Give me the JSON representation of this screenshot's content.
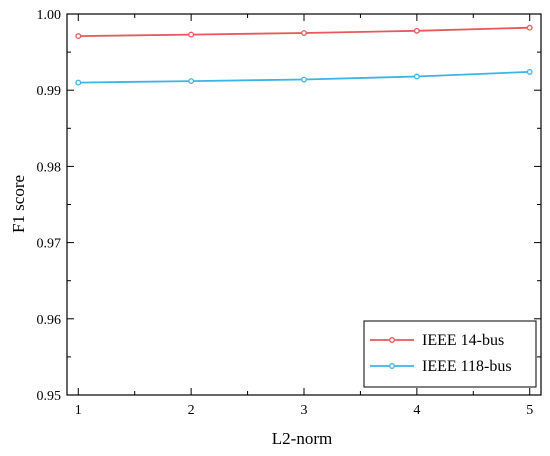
{
  "chart_data": {
    "type": "line",
    "title": "",
    "xlabel": "L2-norm",
    "ylabel": "F1 score",
    "x": [
      1,
      2,
      3,
      4,
      5
    ],
    "xticks": [
      "1",
      "2",
      "3",
      "4",
      "5"
    ],
    "yticks": [
      "0.95",
      "0.96",
      "0.97",
      "0.98",
      "0.99",
      "1.00"
    ],
    "xlim": [
      0.9,
      5.1
    ],
    "ylim": [
      0.95,
      1.0
    ],
    "grid": false,
    "legend_position": "bottom-right",
    "series": [
      {
        "name": "IEEE 14-bus",
        "color": "#e8585c",
        "values": [
          0.9971,
          0.9973,
          0.9975,
          0.9978,
          0.9982
        ]
      },
      {
        "name": "IEEE 118-bus",
        "color": "#3cb4e6",
        "values": [
          0.991,
          0.9912,
          0.9914,
          0.9918,
          0.9924
        ]
      }
    ]
  }
}
